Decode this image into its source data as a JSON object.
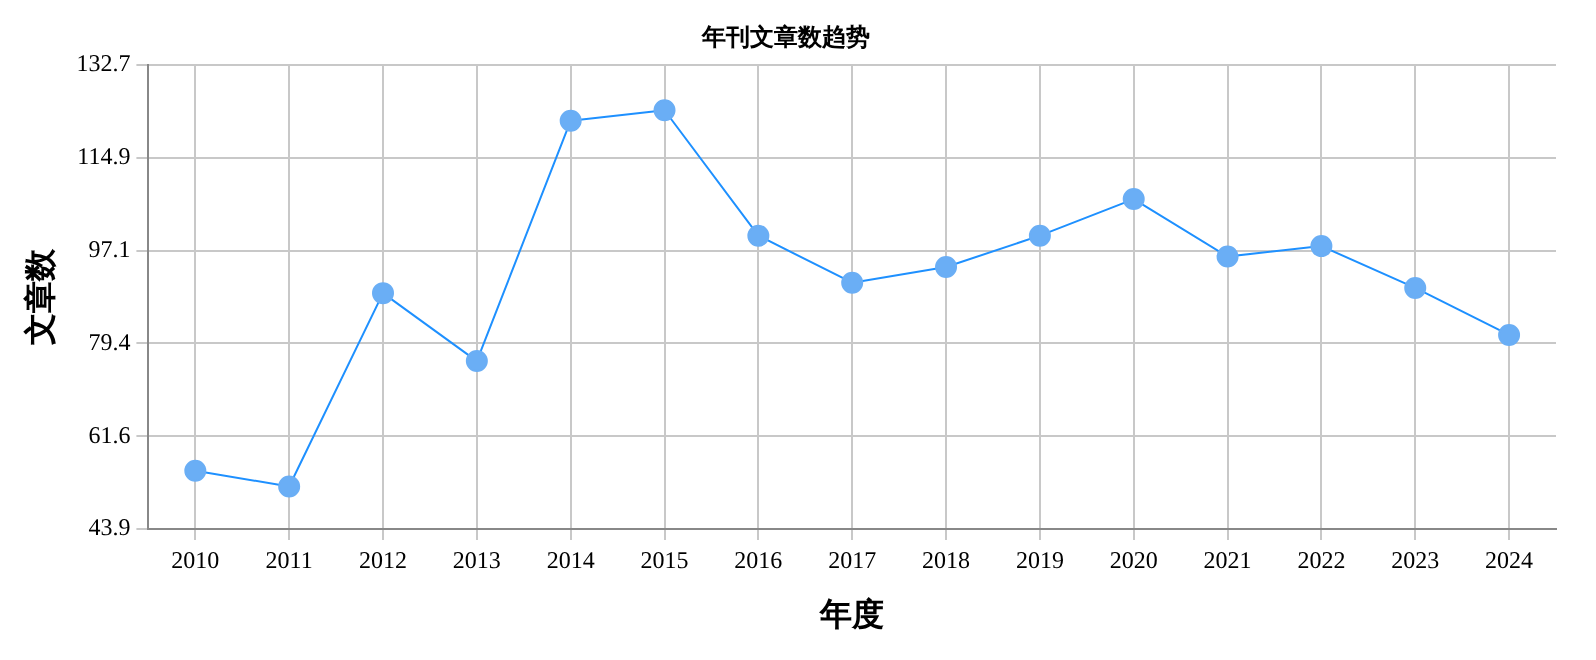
{
  "chart_data": {
    "type": "line",
    "title": "年刊文章数趋势",
    "xlabel": "年度",
    "ylabel": "文章数",
    "categories": [
      "2010",
      "2011",
      "2012",
      "2013",
      "2014",
      "2015",
      "2016",
      "2017",
      "2018",
      "2019",
      "2020",
      "2021",
      "2022",
      "2023",
      "2024"
    ],
    "series": [
      {
        "color": "#1e90ff",
        "values": [
          55,
          52,
          89,
          76,
          122,
          124,
          100,
          91,
          94,
          100,
          107,
          96,
          98,
          90,
          81
        ]
      }
    ],
    "ylim": [
      43.9,
      132.7
    ],
    "yticks": [
      43.9,
      61.6,
      79.4,
      97.1,
      114.9,
      132.7
    ],
    "grid": true,
    "legend": false,
    "marker": "circle",
    "line_style": "solid"
  }
}
